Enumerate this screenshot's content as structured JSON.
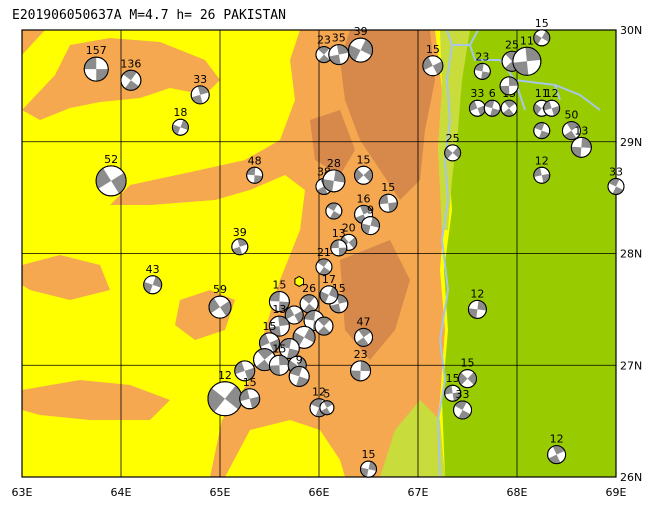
{
  "header": {
    "title": "E201906050637A  M=4.7  h= 26  PAKISTAN"
  },
  "map": {
    "lon_range": [
      63,
      69
    ],
    "lat_range": [
      26,
      30
    ],
    "x_ticks": [
      "63E",
      "64E",
      "65E",
      "66E",
      "67E",
      "68E",
      "69E"
    ],
    "y_ticks": [
      "30N",
      "29N",
      "28N",
      "27N",
      "26N"
    ],
    "colors": {
      "yellow": "#ffff00",
      "orange": "#f5a850",
      "dark_orange": "#d6894a",
      "green": "#99cc00",
      "light_green": "#c8dc3c",
      "river": "#a8c6e6",
      "grid": "#000000"
    },
    "epicenter": {
      "lon": 65.8,
      "lat": 27.75,
      "color": "#ffff00"
    }
  },
  "mechanisms": [
    {
      "lon": 63.75,
      "lat": 29.65,
      "r": 12,
      "depth": "157"
    },
    {
      "lon": 64.1,
      "lat": 29.55,
      "r": 10,
      "depth": "136"
    },
    {
      "lon": 64.8,
      "lat": 29.42,
      "r": 9,
      "depth": "33"
    },
    {
      "lon": 64.6,
      "lat": 29.13,
      "r": 8,
      "depth": "18"
    },
    {
      "lon": 63.9,
      "lat": 28.65,
      "r": 15,
      "depth": "52"
    },
    {
      "lon": 65.35,
      "lat": 28.7,
      "r": 8,
      "depth": "48"
    },
    {
      "lon": 66.05,
      "lat": 29.78,
      "r": 8,
      "depth": "23"
    },
    {
      "lon": 66.2,
      "lat": 29.78,
      "r": 10,
      "depth": "35"
    },
    {
      "lon": 66.42,
      "lat": 29.82,
      "r": 12,
      "depth": "39"
    },
    {
      "lon": 67.15,
      "lat": 29.68,
      "r": 10,
      "depth": "15"
    },
    {
      "lon": 67.65,
      "lat": 29.63,
      "r": 8,
      "depth": "23"
    },
    {
      "lon": 67.95,
      "lat": 29.72,
      "r": 10,
      "depth": "25"
    },
    {
      "lon": 68.1,
      "lat": 29.72,
      "r": 14,
      "depth": "11"
    },
    {
      "lon": 68.25,
      "lat": 29.93,
      "r": 8,
      "depth": "15"
    },
    {
      "lon": 67.6,
      "lat": 29.3,
      "r": 8,
      "depth": "33"
    },
    {
      "lon": 67.75,
      "lat": 29.3,
      "r": 8,
      "depth": "6"
    },
    {
      "lon": 67.92,
      "lat": 29.3,
      "r": 8,
      "depth": "15"
    },
    {
      "lon": 67.92,
      "lat": 29.5,
      "r": 9,
      "depth": ""
    },
    {
      "lon": 68.25,
      "lat": 29.3,
      "r": 8,
      "depth": "11"
    },
    {
      "lon": 68.35,
      "lat": 29.3,
      "r": 8,
      "depth": "12"
    },
    {
      "lon": 68.25,
      "lat": 29.1,
      "r": 8,
      "depth": ""
    },
    {
      "lon": 68.55,
      "lat": 29.1,
      "r": 9,
      "depth": "50"
    },
    {
      "lon": 68.65,
      "lat": 28.95,
      "r": 10,
      "depth": "13"
    },
    {
      "lon": 67.35,
      "lat": 28.9,
      "r": 8,
      "depth": "25"
    },
    {
      "lon": 68.25,
      "lat": 28.7,
      "r": 8,
      "depth": "12"
    },
    {
      "lon": 69.0,
      "lat": 28.6,
      "r": 8,
      "depth": "33"
    },
    {
      "lon": 66.05,
      "lat": 28.6,
      "r": 8,
      "depth": "38"
    },
    {
      "lon": 66.15,
      "lat": 28.65,
      "r": 11,
      "depth": "28"
    },
    {
      "lon": 66.45,
      "lat": 28.7,
      "r": 9,
      "depth": "15"
    },
    {
      "lon": 66.7,
      "lat": 28.45,
      "r": 9,
      "depth": "15"
    },
    {
      "lon": 66.15,
      "lat": 28.38,
      "r": 8,
      "depth": ""
    },
    {
      "lon": 66.45,
      "lat": 28.35,
      "r": 9,
      "depth": "16"
    },
    {
      "lon": 66.52,
      "lat": 28.25,
      "r": 9,
      "depth": "9"
    },
    {
      "lon": 66.3,
      "lat": 28.1,
      "r": 8,
      "depth": "20"
    },
    {
      "lon": 66.2,
      "lat": 28.05,
      "r": 8,
      "depth": "13"
    },
    {
      "lon": 66.05,
      "lat": 27.88,
      "r": 8,
      "depth": "21"
    },
    {
      "lon": 65.2,
      "lat": 28.06,
      "r": 8,
      "depth": "39"
    },
    {
      "lon": 64.32,
      "lat": 27.72,
      "r": 9,
      "depth": "43"
    },
    {
      "lon": 65.0,
      "lat": 27.52,
      "r": 11,
      "depth": "59"
    },
    {
      "lon": 65.6,
      "lat": 27.57,
      "r": 10,
      "depth": "15"
    },
    {
      "lon": 65.9,
      "lat": 27.55,
      "r": 9,
      "depth": "26"
    },
    {
      "lon": 66.2,
      "lat": 27.55,
      "r": 9,
      "depth": "15"
    },
    {
      "lon": 66.1,
      "lat": 27.63,
      "r": 9,
      "depth": "17"
    },
    {
      "lon": 65.75,
      "lat": 27.45,
      "r": 9,
      "depth": ""
    },
    {
      "lon": 65.95,
      "lat": 27.4,
      "r": 10,
      "depth": ""
    },
    {
      "lon": 66.05,
      "lat": 27.35,
      "r": 9,
      "depth": ""
    },
    {
      "lon": 65.6,
      "lat": 27.35,
      "r": 10,
      "depth": "13"
    },
    {
      "lon": 65.85,
      "lat": 27.25,
      "r": 11,
      "depth": ""
    },
    {
      "lon": 65.5,
      "lat": 27.2,
      "r": 10,
      "depth": "15"
    },
    {
      "lon": 65.7,
      "lat": 27.15,
      "r": 10,
      "depth": ""
    },
    {
      "lon": 65.45,
      "lat": 27.05,
      "r": 11,
      "depth": ""
    },
    {
      "lon": 65.6,
      "lat": 27.0,
      "r": 10,
      "depth": "15"
    },
    {
      "lon": 65.78,
      "lat": 27.0,
      "r": 9,
      "depth": ""
    },
    {
      "lon": 65.25,
      "lat": 26.95,
      "r": 10,
      "depth": ""
    },
    {
      "lon": 65.8,
      "lat": 26.9,
      "r": 10,
      "depth": "9"
    },
    {
      "lon": 66.45,
      "lat": 27.25,
      "r": 9,
      "depth": "47"
    },
    {
      "lon": 66.42,
      "lat": 26.95,
      "r": 10,
      "depth": "23"
    },
    {
      "lon": 65.05,
      "lat": 26.7,
      "r": 17,
      "depth": "12"
    },
    {
      "lon": 65.3,
      "lat": 26.7,
      "r": 10,
      "depth": "15"
    },
    {
      "lon": 66.0,
      "lat": 26.62,
      "r": 9,
      "depth": "12"
    },
    {
      "lon": 66.08,
      "lat": 26.62,
      "r": 7,
      "depth": "5"
    },
    {
      "lon": 67.6,
      "lat": 27.5,
      "r": 9,
      "depth": "12"
    },
    {
      "lon": 67.5,
      "lat": 26.88,
      "r": 9,
      "depth": "15"
    },
    {
      "lon": 67.35,
      "lat": 26.75,
      "r": 8,
      "depth": "15"
    },
    {
      "lon": 67.45,
      "lat": 26.6,
      "r": 9,
      "depth": "33"
    },
    {
      "lon": 68.4,
      "lat": 26.2,
      "r": 9,
      "depth": "12"
    },
    {
      "lon": 66.5,
      "lat": 26.07,
      "r": 8,
      "depth": "15"
    }
  ]
}
